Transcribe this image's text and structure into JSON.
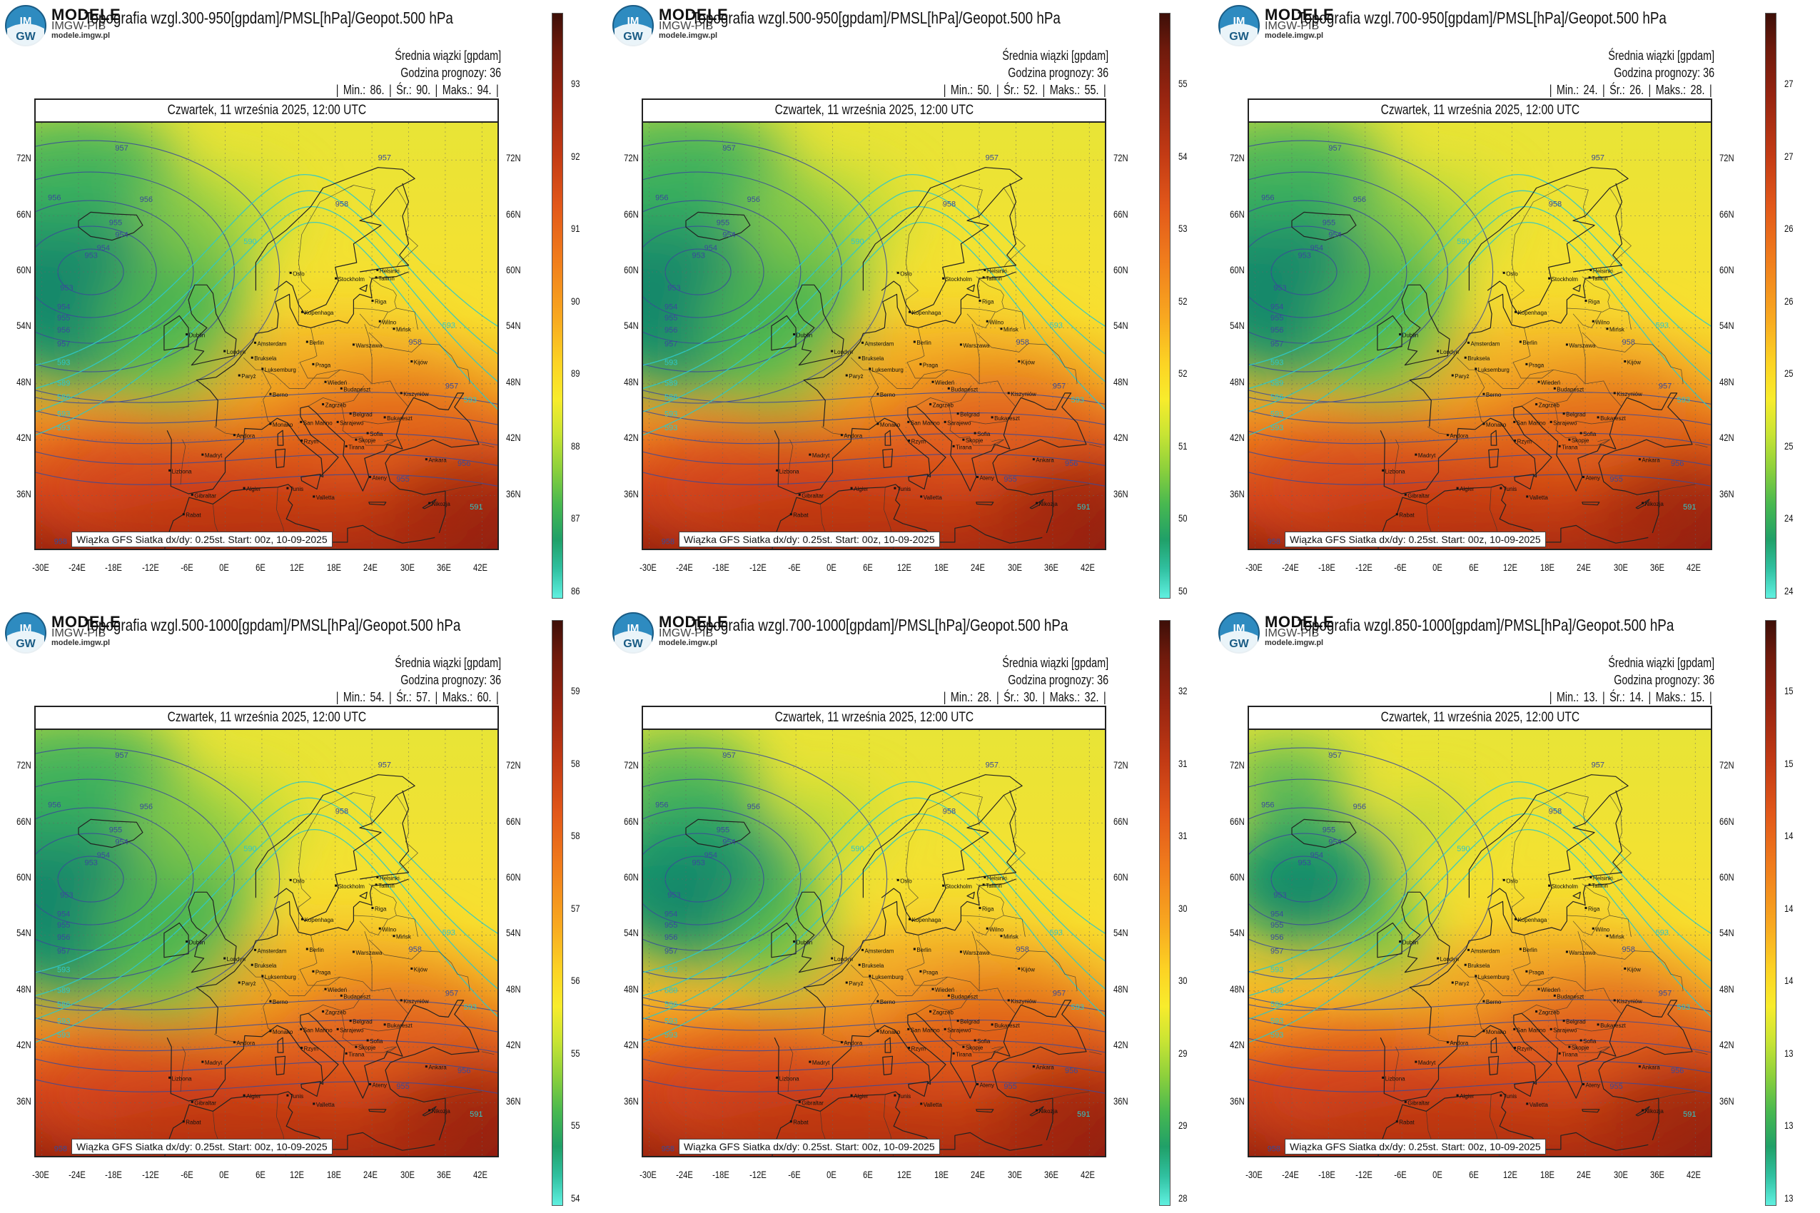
{
  "page": {
    "background": "#ffffff",
    "colors": {
      "high": "#8c1e0a",
      "mid": "#f8e030",
      "low": "#2aa86c",
      "contour_geopot": "#2fc8c8",
      "contour_pmsl": "#3a4a9a",
      "coastline": "#222222"
    }
  },
  "panels": [
    {
      "brand": "MODELE",
      "brand_sub": "IMGW-PIB",
      "brand_url": "modele.imgw.pl",
      "title": "Topografia wzgl.300-950[gpdam]/PMSL[hPa]/Geopot.500 hPa",
      "info_line1": "Średnia wiązki [gpdam]",
      "info_line2": "Godzina prognozy: 36",
      "stats": {
        "min_label": "Min.:",
        "min": "86.",
        "avg_label": "Śr.:",
        "avg": "90.",
        "max_label": "Maks.:",
        "max": "94."
      },
      "date": "Czwartek, 11 września 2025, 12:00 UTC",
      "footer": "Wiązka GFS Siatka dx/dy: 0.25st. Start: 00z, 10-09-2025",
      "colorbar_ticks": [
        "93",
        "92",
        "91",
        "90",
        "89",
        "88",
        "87",
        "86"
      ]
    },
    {
      "brand": "MODELE",
      "brand_sub": "IMGW-PIB",
      "brand_url": "modele.imgw.pl",
      "title": "Topografia wzgl.500-950[gpdam]/PMSL[hPa]/Geopot.500 hPa",
      "info_line1": "Średnia wiązki [gpdam]",
      "info_line2": "Godzina prognozy: 36",
      "stats": {
        "min_label": "Min.:",
        "min": "50.",
        "avg_label": "Śr.:",
        "avg": "52.",
        "max_label": "Maks.:",
        "max": "55."
      },
      "date": "Czwartek, 11 września 2025, 12:00 UTC",
      "footer": "Wiązka GFS Siatka dx/dy: 0.25st. Start: 00z, 10-09-2025",
      "colorbar_ticks": [
        "55",
        "54",
        "53",
        "52",
        "52",
        "51",
        "50",
        "50"
      ]
    },
    {
      "brand": "MODELE",
      "brand_sub": "IMGW-PIB",
      "brand_url": "modele.imgw.pl",
      "title": "Topografia wzgl.700-950[gpdam]/PMSL[hPa]/Geopot.500 hPa",
      "info_line1": "Średnia wiązki [gpdam]",
      "info_line2": "Godzina prognozy: 36",
      "stats": {
        "min_label": "Min.:",
        "min": "24.",
        "avg_label": "Śr.:",
        "avg": "26.",
        "max_label": "Maks.:",
        "max": "28."
      },
      "date": "Czwartek, 11 września 2025, 12:00 UTC",
      "footer": "Wiązka GFS Siatka dx/dy: 0.25st. Start: 00z, 10-09-2025",
      "colorbar_ticks": [
        "27",
        "27",
        "26",
        "26",
        "25",
        "25",
        "24",
        "24"
      ]
    },
    {
      "brand": "MODELE",
      "brand_sub": "IMGW-PIB",
      "brand_url": "modele.imgw.pl",
      "title": "Topografia wzgl.500-1000[gpdam]/PMSL[hPa]/Geopot.500 hPa",
      "info_line1": "Średnia wiązki [gpdam]",
      "info_line2": "Godzina prognozy: 36",
      "stats": {
        "min_label": "Min.:",
        "min": "54.",
        "avg_label": "Śr.:",
        "avg": "57.",
        "max_label": "Maks.:",
        "max": "60."
      },
      "date": "Czwartek, 11 września 2025, 12:00 UTC",
      "footer": "Wiązka GFS Siatka dx/dy: 0.25st. Start: 00z, 10-09-2025",
      "colorbar_ticks": [
        "59",
        "58",
        "58",
        "57",
        "56",
        "55",
        "55",
        "54"
      ]
    },
    {
      "brand": "MODELE",
      "brand_sub": "IMGW-PIB",
      "brand_url": "modele.imgw.pl",
      "title": "Topografia wzgl.700-1000[gpdam]/PMSL[hPa]/Geopot.500 hPa",
      "info_line1": "Średnia wiązki [gpdam]",
      "info_line2": "Godzina prognozy: 36",
      "stats": {
        "min_label": "Min.:",
        "min": "28.",
        "avg_label": "Śr.:",
        "avg": "30.",
        "max_label": "Maks.:",
        "max": "32."
      },
      "date": "Czwartek, 11 września 2025, 12:00 UTC",
      "footer": "Wiązka GFS Siatka dx/dy: 0.25st. Start: 00z, 10-09-2025",
      "colorbar_ticks": [
        "32",
        "31",
        "31",
        "30",
        "30",
        "29",
        "29",
        "28"
      ]
    },
    {
      "brand": "MODELE",
      "brand_sub": "IMGW-PIB",
      "brand_url": "modele.imgw.pl",
      "title": "Topografia wzgl.850-1000[gpdam]/PMSL[hPa]/Geopot.500 hPa",
      "info_line1": "Średnia wiązki [gpdam]",
      "info_line2": "Godzina prognozy: 36",
      "stats": {
        "min_label": "Min.:",
        "min": "13.",
        "avg_label": "Śr.:",
        "avg": "14.",
        "max_label": "Maks.:",
        "max": "15."
      },
      "date": "Czwartek, 11 września 2025, 12:00 UTC",
      "footer": "Wiązka GFS Siatka dx/dy: 0.25st. Start: 00z, 10-09-2025",
      "colorbar_ticks": [
        "15",
        "15",
        "14",
        "14",
        "14",
        "13",
        "13",
        "13"
      ]
    }
  ],
  "axes": {
    "lat_labels_left": [
      "72N",
      "66N",
      "60N",
      "54N",
      "48N",
      "42N",
      "36N"
    ],
    "lat_labels_right": [
      "72N",
      "66N",
      "60N",
      "54N",
      "48N",
      "42N",
      "36N"
    ],
    "lon_labels": [
      "-30E",
      "-24E",
      "-18E",
      "-12E",
      "-6E",
      "0E",
      "6E",
      "12E",
      "18E",
      "24E",
      "30E",
      "36E",
      "42E"
    ]
  },
  "contour_labels": {
    "pmsl": [
      "958",
      "957",
      "956",
      "956",
      "955",
      "954",
      "954",
      "953",
      "953",
      "954",
      "955",
      "956",
      "957",
      "957",
      "958",
      "958",
      "957",
      "956",
      "955"
    ],
    "geopot": [
      "593",
      "589",
      "586",
      "593",
      "593",
      "593",
      "593",
      "591",
      "590"
    ]
  },
  "cities": [
    "Oslo",
    "Stockholm",
    "Helsinki",
    "Tallinn",
    "Riga",
    "Kopenhaga",
    "Wilno",
    "Mińsk",
    "Dublin",
    "Londyn",
    "Amsterdam",
    "Berlin",
    "Warszawa",
    "Kijów",
    "Bruksela",
    "Luksemburg",
    "Paryż",
    "Praga",
    "Wiedeń",
    "Berno",
    "Budapeszt",
    "Kiszyniów",
    "Zagrzeb",
    "Belgrad",
    "Bukareszt",
    "Andora",
    "Monako",
    "San Marino",
    "Sarajewo",
    "Sofia",
    "Lizbona",
    "Madryt",
    "Rzym",
    "Skopje",
    "Tirana",
    "Ateny",
    "Ankara",
    "Gibraltar",
    "Algier",
    "Tunis",
    "Rabat",
    "Valletta",
    "Nikozja"
  ]
}
